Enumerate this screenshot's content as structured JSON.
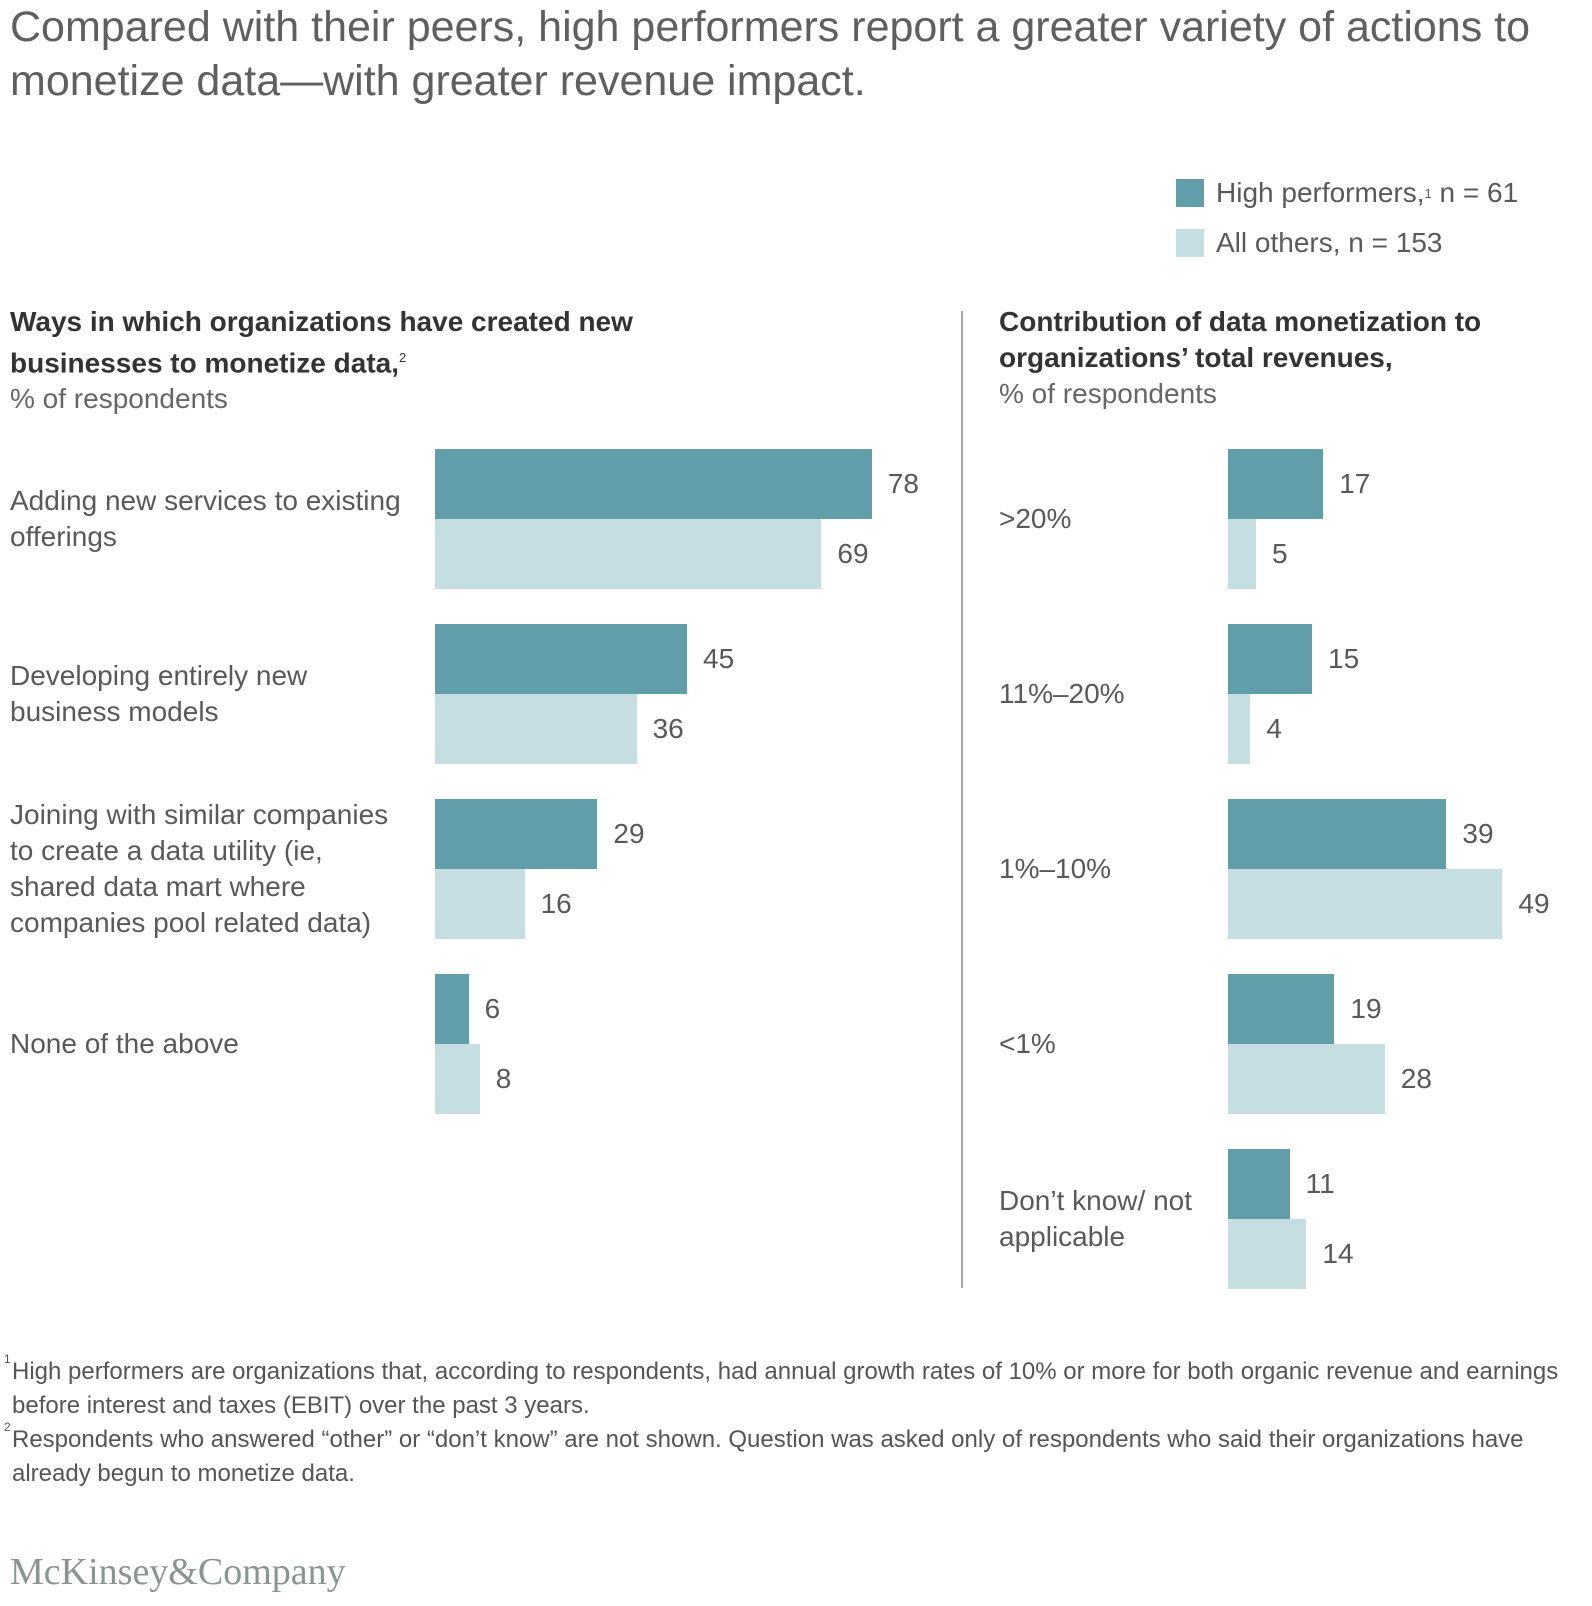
{
  "title": "Compared with their peers, high performers report a greater variety of actions to monetize data—with greater revenue impact.",
  "legend": [
    {
      "label": "High performers,",
      "sup": "1",
      "suffix": " n = 61",
      "color": "#629ea9"
    },
    {
      "label": "All others, n = 153",
      "color": "#c4dee2"
    }
  ],
  "chart_data": [
    {
      "type": "bar",
      "orientation": "horizontal",
      "title": "Ways in which organizations have created new businesses to monetize data,",
      "title_sup": "2",
      "subtitle": "% of respondents",
      "categories": [
        "Adding new services to existing offerings",
        "Developing entirely new business models",
        "Joining with similar companies to create a data utility (ie, shared data mart where companies pool related data)",
        "None of the above"
      ],
      "series": [
        {
          "name": "High performers",
          "values": [
            78,
            45,
            29,
            6
          ]
        },
        {
          "name": "All others",
          "values": [
            69,
            36,
            16,
            8
          ]
        }
      ]
    },
    {
      "type": "bar",
      "orientation": "horizontal",
      "title": "Contribution of data monetization to organizations’ total revenues,",
      "subtitle": "% of respondents",
      "categories": [
        ">20%",
        "11%–20%",
        "1%–10%",
        "<1%",
        "Don’t know/ not applicable"
      ],
      "series": [
        {
          "name": "High performers",
          "values": [
            17,
            15,
            39,
            19,
            11
          ]
        },
        {
          "name": "All others",
          "values": [
            5,
            4,
            49,
            28,
            14
          ]
        }
      ]
    }
  ],
  "footnotes": [
    {
      "sup": "1",
      "text": "High performers are organizations that, according to respondents, had annual growth rates of 10% or more for both organic revenue and earnings before interest and taxes (EBIT) over the past 3 years."
    },
    {
      "sup": "2",
      "text": "Respondents who answered “other” or “don’t know” are not shown. Question was asked only of respondents who said their organizations have already begun to monetize data."
    }
  ],
  "logo": "McKinsey&Company"
}
